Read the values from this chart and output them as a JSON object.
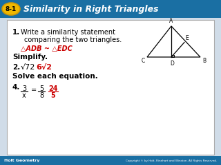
{
  "header_bg": "#1a6fa3",
  "header_label_bg": "#f0b800",
  "header_label_text": "8-1",
  "header_title": "Similarity in Right Triangles",
  "footer_bg": "#1a6fa3",
  "footer_left": "Holt Geometry",
  "footer_right": "Copyright © by Holt, Rinehart and Winston. All Rights Reserved.",
  "body_bg": "#d0dce8",
  "content_bg": "#ffffff",
  "item1_label": "1.",
  "item1_text1": "Write a similarity statement",
  "item1_text2": "comparing the two triangles.",
  "item1_answer": "△ADB ~ △EDC",
  "item1_answer_color": "#cc0000",
  "item_simplify": "Simplify.",
  "item2_label": "2.",
  "item2_sqrt": "√72",
  "item2_answer": "6√2",
  "item2_answer_color": "#cc0000",
  "item_solve": "Solve each equation.",
  "item4_label": "4.",
  "item4_frac1_top": "3",
  "item4_frac1_bot": "x",
  "item4_frac2_top": "5",
  "item4_frac2_bot": "8",
  "item4_frac3_top": "24",
  "item4_frac3_bot": "5",
  "item4_answer_color": "#cc0000"
}
